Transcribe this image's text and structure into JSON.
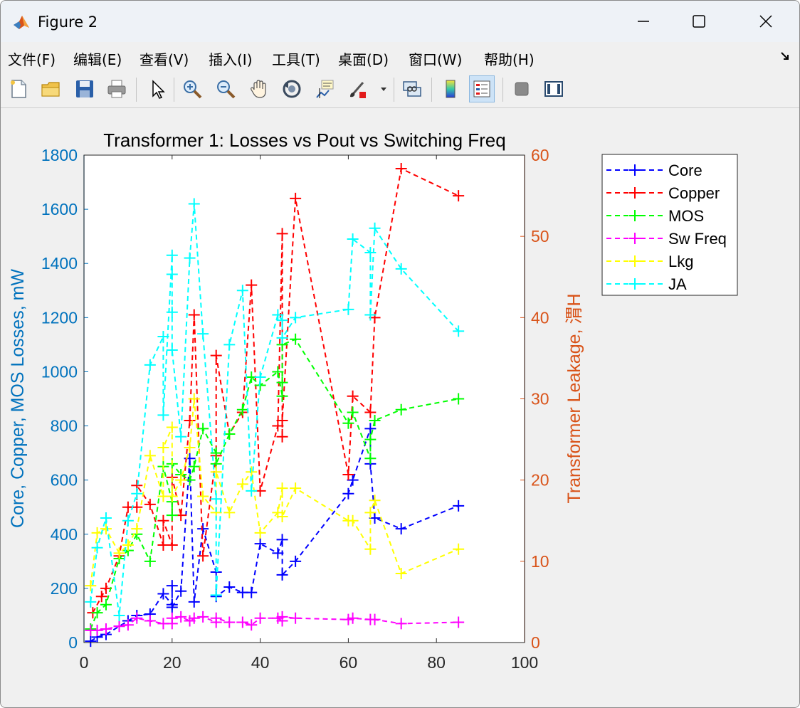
{
  "window": {
    "title": "Figure 2",
    "controls": [
      "minimize",
      "maximize",
      "close"
    ]
  },
  "menu": [
    "文件(F)",
    "编辑(E)",
    "查看(V)",
    "插入(I)",
    "工具(T)",
    "桌面(D)",
    "窗口(W)",
    "帮助(H)"
  ],
  "toolbar": [
    "new-figure-icon",
    "open-file-icon",
    "save-icon",
    "print-icon",
    "pointer-icon",
    "zoom-in-icon",
    "zoom-out-icon",
    "pan-icon",
    "rotate-3d-icon",
    "data-cursor-icon",
    "brush-icon",
    "link-plot-icon",
    "colorbar-icon",
    "legend-icon",
    "hide-plot-tools-icon",
    "show-plot-tools-icon"
  ],
  "chart_data": {
    "type": "line",
    "title": "Transformer 1: Losses vs Pout vs Switching Freq",
    "xlabel": "",
    "ylabel_left": "Core, Copper, MOS Losses, mW",
    "ylabel_right": "Transformer Leakage, 渭H",
    "xlim": [
      0,
      100
    ],
    "ylim_left": [
      0,
      1800
    ],
    "ylim_right": [
      0,
      60
    ],
    "xticks": [
      0,
      20,
      40,
      60,
      80,
      100
    ],
    "yticks_left": [
      0,
      200,
      400,
      600,
      800,
      1000,
      1200,
      1400,
      1600,
      1800
    ],
    "yticks_right": [
      0,
      10,
      20,
      30,
      40,
      50,
      60
    ],
    "grid": false,
    "legend_position": "outside-top-right",
    "colors": {
      "left_axis": "#0072BD",
      "right_axis": "#D95319"
    },
    "series": [
      {
        "name": "Core",
        "color": "#0000ff",
        "axis": "left",
        "points": [
          [
            1.5,
            5
          ],
          [
            3,
            20
          ],
          [
            5,
            30
          ],
          [
            8,
            60
          ],
          [
            10,
            80
          ],
          [
            12,
            100
          ],
          [
            15,
            105
          ],
          [
            18,
            180
          ],
          [
            20,
            140
          ],
          [
            20,
            210
          ],
          [
            20,
            130
          ],
          [
            22,
            190
          ],
          [
            24,
            680
          ],
          [
            25,
            150
          ],
          [
            27,
            420
          ],
          [
            30,
            260
          ],
          [
            30,
            170
          ],
          [
            33,
            205
          ],
          [
            36,
            185
          ],
          [
            38,
            185
          ],
          [
            40,
            365
          ],
          [
            44,
            330
          ],
          [
            45,
            380
          ],
          [
            45,
            250
          ],
          [
            48,
            300
          ],
          [
            60,
            550
          ],
          [
            61,
            600
          ],
          [
            65,
            790
          ],
          [
            65,
            660
          ],
          [
            66,
            460
          ],
          [
            72,
            420
          ],
          [
            85,
            505
          ]
        ]
      },
      {
        "name": "Copper",
        "color": "#ff0000",
        "axis": "left",
        "points": [
          [
            2,
            110
          ],
          [
            4,
            170
          ],
          [
            5,
            200
          ],
          [
            8,
            320
          ],
          [
            10,
            500
          ],
          [
            12,
            500
          ],
          [
            12,
            580
          ],
          [
            15,
            510
          ],
          [
            18,
            360
          ],
          [
            18,
            450
          ],
          [
            20,
            360
          ],
          [
            20,
            610
          ],
          [
            22,
            470
          ],
          [
            24,
            820
          ],
          [
            25,
            1210
          ],
          [
            27,
            320
          ],
          [
            30,
            690
          ],
          [
            30,
            1060
          ],
          [
            33,
            770
          ],
          [
            36,
            850
          ],
          [
            38,
            1320
          ],
          [
            40,
            560
          ],
          [
            44,
            800
          ],
          [
            45,
            1510
          ],
          [
            45,
            760
          ],
          [
            45,
            820
          ],
          [
            48,
            1640
          ],
          [
            60,
            620
          ],
          [
            61,
            910
          ],
          [
            65,
            850
          ],
          [
            66,
            1200
          ],
          [
            72,
            1750
          ],
          [
            85,
            1650
          ]
        ]
      },
      {
        "name": "MOS",
        "color": "#00ff00",
        "axis": "left",
        "points": [
          [
            1.5,
            50
          ],
          [
            3,
            110
          ],
          [
            5,
            140
          ],
          [
            8,
            310
          ],
          [
            10,
            340
          ],
          [
            12,
            400
          ],
          [
            15,
            300
          ],
          [
            18,
            650
          ],
          [
            20,
            520
          ],
          [
            20,
            470
          ],
          [
            20,
            660
          ],
          [
            22,
            620
          ],
          [
            24,
            600
          ],
          [
            25,
            650
          ],
          [
            27,
            790
          ],
          [
            30,
            700
          ],
          [
            30,
            660
          ],
          [
            33,
            770
          ],
          [
            36,
            860
          ],
          [
            38,
            980
          ],
          [
            40,
            950
          ],
          [
            44,
            1000
          ],
          [
            45,
            910
          ],
          [
            45,
            960
          ],
          [
            45,
            1100
          ],
          [
            48,
            1120
          ],
          [
            60,
            810
          ],
          [
            61,
            850
          ],
          [
            65,
            680
          ],
          [
            65,
            750
          ],
          [
            66,
            820
          ],
          [
            72,
            860
          ],
          [
            85,
            900
          ]
        ]
      },
      {
        "name": "Sw Freq",
        "color": "#ff00ff",
        "axis": "left",
        "points": [
          [
            1.5,
            45
          ],
          [
            3,
            45
          ],
          [
            5,
            50
          ],
          [
            8,
            60
          ],
          [
            10,
            65
          ],
          [
            12,
            90
          ],
          [
            15,
            80
          ],
          [
            18,
            70
          ],
          [
            20,
            70
          ],
          [
            20,
            90
          ],
          [
            22,
            95
          ],
          [
            24,
            80
          ],
          [
            25,
            90
          ],
          [
            27,
            95
          ],
          [
            30,
            75
          ],
          [
            30,
            90
          ],
          [
            33,
            75
          ],
          [
            36,
            75
          ],
          [
            38,
            65
          ],
          [
            40,
            90
          ],
          [
            44,
            90
          ],
          [
            45,
            80
          ],
          [
            45,
            95
          ],
          [
            48,
            90
          ],
          [
            60,
            85
          ],
          [
            61,
            90
          ],
          [
            65,
            85
          ],
          [
            66,
            85
          ],
          [
            72,
            70
          ],
          [
            85,
            75
          ]
        ]
      },
      {
        "name": "Lkg",
        "color": "#ffff00",
        "axis": "right",
        "points": [
          [
            1.5,
            7
          ],
          [
            3,
            13.5
          ],
          [
            5,
            14
          ],
          [
            8,
            11
          ],
          [
            10,
            12
          ],
          [
            12,
            14
          ],
          [
            15,
            23
          ],
          [
            18,
            18
          ],
          [
            18,
            24
          ],
          [
            20,
            26.5
          ],
          [
            20,
            18
          ],
          [
            22,
            20
          ],
          [
            24,
            24
          ],
          [
            25,
            30
          ],
          [
            27,
            18
          ],
          [
            30,
            16
          ],
          [
            30,
            21
          ],
          [
            33,
            16
          ],
          [
            36,
            19.5
          ],
          [
            38,
            21
          ],
          [
            40,
            13.5
          ],
          [
            44,
            16
          ],
          [
            45,
            19
          ],
          [
            45,
            15.5
          ],
          [
            48,
            19
          ],
          [
            60,
            15
          ],
          [
            61,
            15
          ],
          [
            65,
            11.5
          ],
          [
            65,
            16
          ],
          [
            66,
            17.5
          ],
          [
            72,
            8.5
          ],
          [
            85,
            11.5
          ]
        ]
      },
      {
        "name": "JA",
        "color": "#00ffff",
        "axis": "left",
        "points": [
          [
            1.5,
            150
          ],
          [
            3,
            350
          ],
          [
            5,
            460
          ],
          [
            8,
            100
          ],
          [
            10,
            450
          ],
          [
            12,
            550
          ],
          [
            15,
            1025
          ],
          [
            18,
            1130
          ],
          [
            18,
            840
          ],
          [
            20,
            1430
          ],
          [
            20,
            1360
          ],
          [
            20,
            1220
          ],
          [
            20,
            1080
          ],
          [
            22,
            760
          ],
          [
            24,
            1420
          ],
          [
            25,
            1620
          ],
          [
            27,
            1140
          ],
          [
            30,
            530
          ],
          [
            30,
            175
          ],
          [
            33,
            1100
          ],
          [
            36,
            1300
          ],
          [
            38,
            560
          ],
          [
            40,
            980
          ],
          [
            44,
            1210
          ],
          [
            45,
            1190
          ],
          [
            45,
            1125
          ],
          [
            48,
            1200
          ],
          [
            60,
            1230
          ],
          [
            61,
            1490
          ],
          [
            65,
            1440
          ],
          [
            65,
            1210
          ],
          [
            66,
            1530
          ],
          [
            72,
            1380
          ],
          [
            85,
            1150
          ]
        ]
      }
    ]
  }
}
